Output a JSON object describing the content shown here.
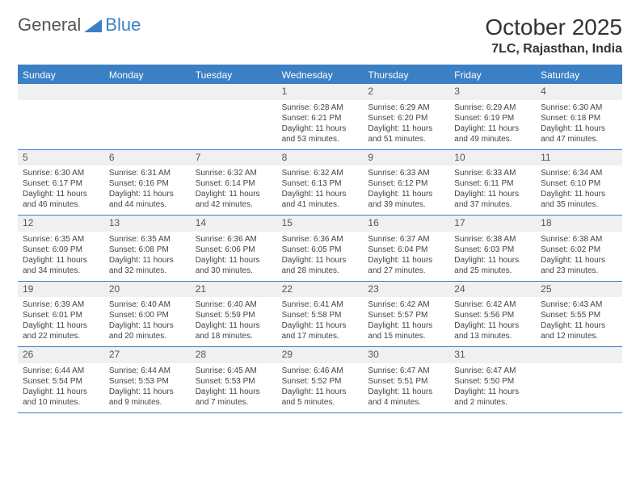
{
  "logo": {
    "text1": "General",
    "text2": "Blue"
  },
  "title": "October 2025",
  "location": "7LC, Rajasthan, India",
  "colors": {
    "accent": "#3b7fc4",
    "header_bg": "#3b7fc4",
    "header_text": "#ffffff",
    "cell_num_bg": "#eef0f2",
    "border": "#3b7fc4",
    "text": "#333333"
  },
  "day_names": [
    "Sunday",
    "Monday",
    "Tuesday",
    "Wednesday",
    "Thursday",
    "Friday",
    "Saturday"
  ],
  "weeks": [
    [
      {
        "empty": true
      },
      {
        "empty": true
      },
      {
        "empty": true
      },
      {
        "n": "1",
        "sr": "6:28 AM",
        "ss": "6:21 PM",
        "dl": "11 hours and 53 minutes."
      },
      {
        "n": "2",
        "sr": "6:29 AM",
        "ss": "6:20 PM",
        "dl": "11 hours and 51 minutes."
      },
      {
        "n": "3",
        "sr": "6:29 AM",
        "ss": "6:19 PM",
        "dl": "11 hours and 49 minutes."
      },
      {
        "n": "4",
        "sr": "6:30 AM",
        "ss": "6:18 PM",
        "dl": "11 hours and 47 minutes."
      }
    ],
    [
      {
        "n": "5",
        "sr": "6:30 AM",
        "ss": "6:17 PM",
        "dl": "11 hours and 46 minutes."
      },
      {
        "n": "6",
        "sr": "6:31 AM",
        "ss": "6:16 PM",
        "dl": "11 hours and 44 minutes."
      },
      {
        "n": "7",
        "sr": "6:32 AM",
        "ss": "6:14 PM",
        "dl": "11 hours and 42 minutes."
      },
      {
        "n": "8",
        "sr": "6:32 AM",
        "ss": "6:13 PM",
        "dl": "11 hours and 41 minutes."
      },
      {
        "n": "9",
        "sr": "6:33 AM",
        "ss": "6:12 PM",
        "dl": "11 hours and 39 minutes."
      },
      {
        "n": "10",
        "sr": "6:33 AM",
        "ss": "6:11 PM",
        "dl": "11 hours and 37 minutes."
      },
      {
        "n": "11",
        "sr": "6:34 AM",
        "ss": "6:10 PM",
        "dl": "11 hours and 35 minutes."
      }
    ],
    [
      {
        "n": "12",
        "sr": "6:35 AM",
        "ss": "6:09 PM",
        "dl": "11 hours and 34 minutes."
      },
      {
        "n": "13",
        "sr": "6:35 AM",
        "ss": "6:08 PM",
        "dl": "11 hours and 32 minutes."
      },
      {
        "n": "14",
        "sr": "6:36 AM",
        "ss": "6:06 PM",
        "dl": "11 hours and 30 minutes."
      },
      {
        "n": "15",
        "sr": "6:36 AM",
        "ss": "6:05 PM",
        "dl": "11 hours and 28 minutes."
      },
      {
        "n": "16",
        "sr": "6:37 AM",
        "ss": "6:04 PM",
        "dl": "11 hours and 27 minutes."
      },
      {
        "n": "17",
        "sr": "6:38 AM",
        "ss": "6:03 PM",
        "dl": "11 hours and 25 minutes."
      },
      {
        "n": "18",
        "sr": "6:38 AM",
        "ss": "6:02 PM",
        "dl": "11 hours and 23 minutes."
      }
    ],
    [
      {
        "n": "19",
        "sr": "6:39 AM",
        "ss": "6:01 PM",
        "dl": "11 hours and 22 minutes."
      },
      {
        "n": "20",
        "sr": "6:40 AM",
        "ss": "6:00 PM",
        "dl": "11 hours and 20 minutes."
      },
      {
        "n": "21",
        "sr": "6:40 AM",
        "ss": "5:59 PM",
        "dl": "11 hours and 18 minutes."
      },
      {
        "n": "22",
        "sr": "6:41 AM",
        "ss": "5:58 PM",
        "dl": "11 hours and 17 minutes."
      },
      {
        "n": "23",
        "sr": "6:42 AM",
        "ss": "5:57 PM",
        "dl": "11 hours and 15 minutes."
      },
      {
        "n": "24",
        "sr": "6:42 AM",
        "ss": "5:56 PM",
        "dl": "11 hours and 13 minutes."
      },
      {
        "n": "25",
        "sr": "6:43 AM",
        "ss": "5:55 PM",
        "dl": "11 hours and 12 minutes."
      }
    ],
    [
      {
        "n": "26",
        "sr": "6:44 AM",
        "ss": "5:54 PM",
        "dl": "11 hours and 10 minutes."
      },
      {
        "n": "27",
        "sr": "6:44 AM",
        "ss": "5:53 PM",
        "dl": "11 hours and 9 minutes."
      },
      {
        "n": "28",
        "sr": "6:45 AM",
        "ss": "5:53 PM",
        "dl": "11 hours and 7 minutes."
      },
      {
        "n": "29",
        "sr": "6:46 AM",
        "ss": "5:52 PM",
        "dl": "11 hours and 5 minutes."
      },
      {
        "n": "30",
        "sr": "6:47 AM",
        "ss": "5:51 PM",
        "dl": "11 hours and 4 minutes."
      },
      {
        "n": "31",
        "sr": "6:47 AM",
        "ss": "5:50 PM",
        "dl": "11 hours and 2 minutes."
      },
      {
        "empty": true
      }
    ]
  ],
  "labels": {
    "sunrise": "Sunrise: ",
    "sunset": "Sunset: ",
    "daylight": "Daylight: "
  }
}
